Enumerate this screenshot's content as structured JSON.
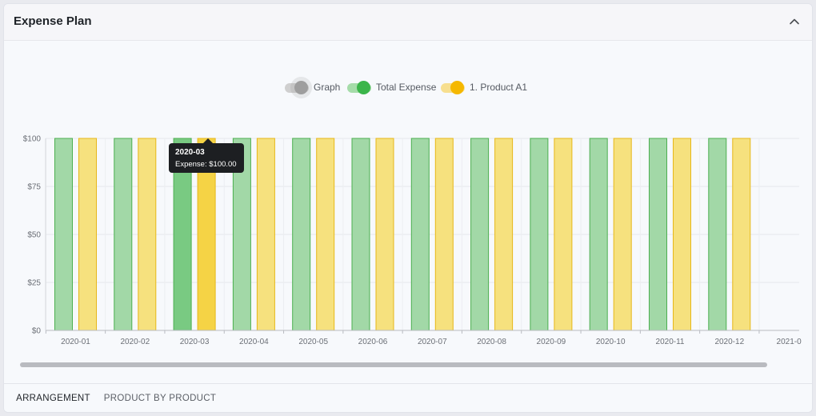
{
  "header": {
    "title": "Expense Plan",
    "collapse_icon": "chevron-up-icon"
  },
  "legend": {
    "items": [
      {
        "label": "Graph",
        "on": false,
        "color": "#9e9e9e",
        "track": "#cfcfcf"
      },
      {
        "label": "Total Expense",
        "on": true,
        "color": "#3bb54a",
        "track": "#a5dca9"
      },
      {
        "label": "1. Product A1",
        "on": true,
        "color": "#f5b800",
        "track": "#f7df8f"
      }
    ]
  },
  "tooltip": {
    "title": "2020-03",
    "body": "Expense: $100.00"
  },
  "chart_data": {
    "type": "bar",
    "categories": [
      "2020-01",
      "2020-02",
      "2020-03",
      "2020-04",
      "2020-05",
      "2020-06",
      "2020-07",
      "2020-08",
      "2020-09",
      "2020-10",
      "2020-11",
      "2020-12",
      "2021-0"
    ],
    "series": [
      {
        "name": "Total Expense",
        "values": [
          100,
          100,
          100,
          100,
          100,
          100,
          100,
          100,
          100,
          100,
          100,
          100,
          null
        ],
        "fill": "#a2d8a7",
        "stroke": "#4caf50",
        "highlight_fill": "#79ca82"
      },
      {
        "name": "1. Product A1",
        "values": [
          100,
          100,
          100,
          100,
          100,
          100,
          100,
          100,
          100,
          100,
          100,
          100,
          null
        ],
        "fill": "#f6e17e",
        "stroke": "#e7b719",
        "highlight_fill": "#f5d345"
      }
    ],
    "highlighted_category": "2020-03",
    "ylim": [
      0,
      100
    ],
    "yticks": [
      "$0",
      "$25",
      "$50",
      "$75",
      "$100"
    ],
    "ytick_values": [
      0,
      25,
      50,
      75,
      100
    ],
    "grid": true
  },
  "scrollbar": {
    "thumb_color": "#b9bbc0"
  },
  "tabs": [
    {
      "label": "ARRANGEMENT",
      "active": true
    },
    {
      "label": "PRODUCT BY PRODUCT",
      "active": false
    }
  ],
  "colors": {
    "accent": "#7b2fc9",
    "tooltip_bg": "#1d1f22"
  }
}
